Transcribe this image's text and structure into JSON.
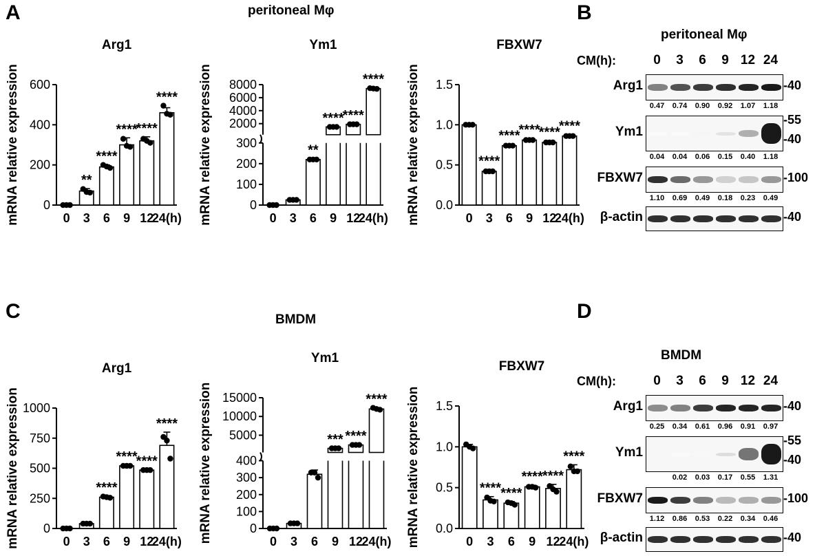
{
  "panel_labels": {
    "A": "A",
    "B": "B",
    "C": "C",
    "D": "D"
  },
  "group_titles": {
    "peritoneal": "peritoneal Mφ",
    "bmdm": "BMDM"
  },
  "chart_data": [
    {
      "type": "bar",
      "title": "Arg1",
      "ylabel": "mRNA relative expression",
      "categories": [
        "0",
        "3",
        "6",
        "9",
        "12",
        "24(h)"
      ],
      "values": [
        0,
        70,
        190,
        300,
        320,
        460
      ],
      "errors": [
        3,
        12,
        10,
        35,
        20,
        25
      ],
      "points": [
        [
          0,
          0,
          0
        ],
        [
          80,
          65,
          62
        ],
        [
          200,
          192,
          185
        ],
        [
          330,
          295,
          290
        ],
        [
          330,
          320,
          310
        ],
        [
          495,
          455,
          450
        ]
      ],
      "significance": [
        "",
        "**",
        "****",
        "****",
        "****",
        "****"
      ],
      "yticks": [
        "0",
        "200",
        "400",
        "600"
      ],
      "ylim": [
        0,
        600
      ]
    },
    {
      "type": "bar",
      "title": "Ym1",
      "ylabel": "mRNA relative expression",
      "categories": [
        "0",
        "3",
        "6",
        "9",
        "12",
        "24(h)"
      ],
      "values": [
        0,
        25,
        220,
        1500,
        1900,
        7400
      ],
      "errors": [
        2,
        5,
        5,
        50,
        70,
        120
      ],
      "points": [
        [
          0,
          0,
          0
        ],
        [
          25,
          25,
          25
        ],
        [
          220,
          220,
          220
        ],
        [
          1500,
          1500,
          1500
        ],
        [
          1900,
          1900,
          1900
        ],
        [
          7450,
          7400,
          7350
        ]
      ],
      "significance": [
        "",
        "",
        "**",
        "****",
        "****",
        "****"
      ],
      "broken_axis": {
        "lower": [
          0,
          300
        ],
        "upper": [
          300,
          8000
        ]
      },
      "yticks_lower": [
        "0",
        "100",
        "200",
        "300"
      ],
      "yticks_upper": [
        "2000",
        "4000",
        "6000",
        "8000"
      ]
    },
    {
      "type": "bar",
      "title": "FBXW7",
      "ylabel": "mRNA relative expression",
      "categories": [
        "0",
        "3",
        "6",
        "9",
        "12",
        "24(h)"
      ],
      "values": [
        1.0,
        0.42,
        0.74,
        0.81,
        0.78,
        0.86
      ],
      "errors": [
        0.02,
        0.02,
        0.02,
        0.02,
        0.02,
        0.02
      ],
      "points": [
        [
          1.0,
          1.0,
          1.0
        ],
        [
          0.42,
          0.42,
          0.42
        ],
        [
          0.74,
          0.74,
          0.74
        ],
        [
          0.81,
          0.81,
          0.81
        ],
        [
          0.78,
          0.78,
          0.78
        ],
        [
          0.86,
          0.86,
          0.86
        ]
      ],
      "significance": [
        "",
        "****",
        "****",
        "****",
        "****",
        "****"
      ],
      "yticks": [
        "0.0",
        "0.5",
        "1.0",
        "1.5"
      ],
      "ylim": [
        0,
        1.5
      ]
    },
    {
      "type": "bar",
      "title": "Arg1",
      "ylabel": "mRNA relative expression",
      "categories": [
        "0",
        "3",
        "6",
        "9",
        "12",
        "24(h)"
      ],
      "values": [
        0,
        40,
        260,
        520,
        485,
        690
      ],
      "errors": [
        3,
        8,
        10,
        5,
        5,
        110
      ],
      "points": [
        [
          0,
          0,
          0
        ],
        [
          40,
          40,
          40
        ],
        [
          265,
          260,
          255
        ],
        [
          520,
          520,
          520
        ],
        [
          485,
          485,
          485
        ],
        [
          760,
          730,
          580
        ]
      ],
      "significance": [
        "",
        "",
        "****",
        "****",
        "****",
        "****"
      ],
      "yticks": [
        "0",
        "250",
        "500",
        "750",
        "1000"
      ],
      "ylim": [
        0,
        1000
      ]
    },
    {
      "type": "bar",
      "title": "Ym1",
      "ylabel": "mRNA relative expression",
      "categories": [
        "0",
        "3",
        "6",
        "9",
        "12",
        "24(h)"
      ],
      "values": [
        0,
        30,
        320,
        1500,
        2400,
        12000
      ],
      "errors": [
        2,
        5,
        25,
        80,
        120,
        300
      ],
      "points": [
        [
          0,
          0,
          0
        ],
        [
          30,
          30,
          30
        ],
        [
          330,
          330,
          300
        ],
        [
          1500,
          1500,
          1500
        ],
        [
          2400,
          2400,
          2400
        ],
        [
          12300,
          12000,
          11800
        ]
      ],
      "significance": [
        "",
        "",
        "",
        "***",
        "****",
        "****"
      ],
      "broken_axis": {
        "lower": [
          0,
          400
        ],
        "upper": [
          400,
          15000
        ]
      },
      "yticks_lower": [
        "0",
        "100",
        "200",
        "300",
        "400"
      ],
      "yticks_upper": [
        "5000",
        "10000",
        "15000"
      ]
    },
    {
      "type": "bar",
      "title": "FBXW7",
      "ylabel": "mRNA relative expression",
      "categories": [
        "0",
        "3",
        "6",
        "9",
        "12",
        "24(h)"
      ],
      "values": [
        1.0,
        0.35,
        0.31,
        0.51,
        0.49,
        0.72
      ],
      "errors": [
        0.03,
        0.04,
        0.02,
        0.02,
        0.05,
        0.06
      ],
      "points": [
        [
          1.03,
          1.0,
          0.98
        ],
        [
          0.38,
          0.34,
          0.33
        ],
        [
          0.32,
          0.31,
          0.29
        ],
        [
          0.51,
          0.51,
          0.5
        ],
        [
          0.52,
          0.48,
          0.45
        ],
        [
          0.76,
          0.7,
          0.7
        ]
      ],
      "significance": [
        "",
        "****",
        "****",
        "****",
        "****",
        "****"
      ],
      "yticks": [
        "0.0",
        "0.5",
        "1.0",
        "1.5"
      ],
      "ylim": [
        0,
        1.5
      ]
    }
  ],
  "blots": [
    {
      "title": "peritoneal Mφ",
      "cm_label": "CM(h):",
      "timepoints": [
        "0",
        "3",
        "6",
        "9",
        "12",
        "24"
      ],
      "rows": [
        {
          "name": "Arg1",
          "mw": [
            "40"
          ],
          "quant": [
            "0.47",
            "0.74",
            "0.90",
            "0.92",
            "1.07",
            "1.18"
          ],
          "intensity": [
            0.55,
            0.75,
            0.85,
            0.9,
            0.95,
            1.0
          ]
        },
        {
          "name": "Ym1",
          "mw": [
            "55",
            "40"
          ],
          "quant": [
            "0.04",
            "0.04",
            "0.06",
            "0.15",
            "0.40",
            "1.18"
          ],
          "intensity": [
            0.02,
            0.02,
            0.04,
            0.12,
            0.35,
            1.0
          ]
        },
        {
          "name": "FBXW7",
          "mw": [
            "100"
          ],
          "quant": [
            "1.10",
            "0.69",
            "0.49",
            "0.18",
            "0.23",
            "0.49"
          ],
          "intensity": [
            0.9,
            0.65,
            0.45,
            0.2,
            0.25,
            0.45
          ]
        },
        {
          "name": "β-actin",
          "mw": [
            "40"
          ],
          "quant": [],
          "intensity": [
            0.9,
            0.9,
            0.9,
            0.9,
            0.9,
            0.9
          ]
        }
      ]
    },
    {
      "title": "BMDM",
      "cm_label": "CM(h):",
      "timepoints": [
        "0",
        "3",
        "6",
        "9",
        "12",
        "24"
      ],
      "rows": [
        {
          "name": "Arg1",
          "mw": [
            "40"
          ],
          "quant": [
            "0.25",
            "0.34",
            "0.61",
            "0.96",
            "0.91",
            "0.97"
          ],
          "intensity": [
            0.5,
            0.55,
            0.85,
            0.95,
            0.95,
            0.95
          ]
        },
        {
          "name": "Ym1",
          "mw": [
            "55",
            "40"
          ],
          "quant": [
            "",
            "0.02",
            "0.03",
            "0.17",
            "0.55",
            "1.31"
          ],
          "intensity": [
            0.0,
            0.02,
            0.03,
            0.15,
            0.6,
            1.0
          ]
        },
        {
          "name": "FBXW7",
          "mw": [
            "100"
          ],
          "quant": [
            "1.12",
            "0.86",
            "0.53",
            "0.22",
            "0.34",
            "0.46"
          ],
          "intensity": [
            1.0,
            0.85,
            0.55,
            0.3,
            0.35,
            0.45
          ]
        },
        {
          "name": "β-actin",
          "mw": [
            "40"
          ],
          "quant": [],
          "intensity": [
            0.9,
            0.9,
            0.9,
            0.9,
            0.9,
            0.9
          ]
        }
      ]
    }
  ]
}
